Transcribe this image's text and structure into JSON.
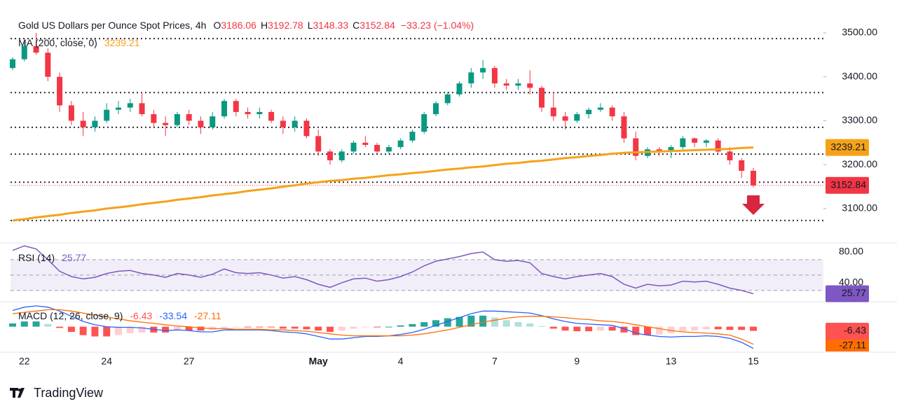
{
  "chart_data": {
    "type": "candlestick",
    "title": "Gold US Dollars per Ounce Spot Prices, 4h",
    "ohlc_labels": [
      "O",
      "H",
      "L",
      "C"
    ],
    "change": "−33.23 (−1.04%)",
    "categories": [
      null,
      "22",
      null,
      null,
      null,
      null,
      null,
      null,
      "24",
      null,
      null,
      null,
      null,
      null,
      null,
      "27",
      null,
      null,
      null,
      null,
      null,
      null,
      null,
      null,
      null,
      null,
      "May",
      null,
      null,
      null,
      null,
      null,
      null,
      "4",
      null,
      null,
      null,
      null,
      null,
      null,
      null,
      "7",
      null,
      null,
      null,
      null,
      null,
      null,
      "9",
      null,
      null,
      null,
      null,
      null,
      null,
      null,
      "13",
      null,
      null,
      null,
      null,
      null,
      null,
      "15"
    ],
    "open": [
      3420,
      3440,
      3470,
      3455,
      3400,
      3335,
      3300,
      3285,
      3300,
      3325,
      3330,
      3340,
      3315,
      3295,
      3290,
      3315,
      3300,
      3285,
      3310,
      3345,
      3320,
      3315,
      3320,
      3300,
      3285,
      3300,
      3265,
      3230,
      3210,
      3230,
      3250,
      3245,
      3230,
      3240,
      3255,
      3275,
      3315,
      3340,
      3360,
      3385,
      3410,
      3420,
      3385,
      3380,
      3385,
      3375,
      3330,
      3310,
      3300,
      3315,
      3325,
      3330,
      3310,
      3260,
      3220,
      3235,
      3230,
      3240,
      3260,
      3250,
      3255,
      3230,
      3210,
      3186.06
    ],
    "high": [
      3445,
      3480,
      3500,
      3465,
      3410,
      3345,
      3320,
      3310,
      3340,
      3345,
      3350,
      3365,
      3325,
      3310,
      3320,
      3325,
      3310,
      3320,
      3350,
      3350,
      3330,
      3330,
      3325,
      3310,
      3310,
      3305,
      3280,
      3235,
      3235,
      3255,
      3265,
      3250,
      3245,
      3260,
      3280,
      3320,
      3345,
      3365,
      3390,
      3420,
      3438,
      3425,
      3395,
      3395,
      3415,
      3380,
      3365,
      3320,
      3320,
      3330,
      3340,
      3335,
      3320,
      3275,
      3240,
      3240,
      3245,
      3265,
      3262,
      3258,
      3260,
      3240,
      3215,
      3192.78
    ],
    "low": [
      3415,
      3435,
      3450,
      3390,
      3320,
      3290,
      3265,
      3275,
      3295,
      3315,
      3320,
      3310,
      3285,
      3265,
      3285,
      3290,
      3270,
      3280,
      3305,
      3310,
      3305,
      3305,
      3295,
      3270,
      3275,
      3260,
      3220,
      3200,
      3205,
      3225,
      3240,
      3225,
      3225,
      3235,
      3250,
      3270,
      3310,
      3335,
      3355,
      3375,
      3395,
      3375,
      3370,
      3370,
      3360,
      3320,
      3300,
      3280,
      3295,
      3305,
      3320,
      3300,
      3250,
      3210,
      3215,
      3220,
      3215,
      3235,
      3240,
      3240,
      3225,
      3200,
      3170,
      3148.33
    ],
    "close": [
      3440,
      3470,
      3455,
      3400,
      3335,
      3300,
      3285,
      3300,
      3325,
      3330,
      3340,
      3315,
      3295,
      3290,
      3315,
      3300,
      3285,
      3310,
      3345,
      3320,
      3315,
      3320,
      3300,
      3285,
      3300,
      3265,
      3230,
      3210,
      3230,
      3250,
      3245,
      3230,
      3240,
      3255,
      3275,
      3315,
      3340,
      3360,
      3385,
      3410,
      3420,
      3385,
      3380,
      3385,
      3375,
      3330,
      3310,
      3300,
      3315,
      3325,
      3330,
      3310,
      3260,
      3220,
      3235,
      3230,
      3240,
      3260,
      3250,
      3255,
      3230,
      3210,
      3186,
      3152.84
    ],
    "up_color": "#089981",
    "down_color": "#f23645",
    "ylim": [
      3025,
      3543
    ],
    "yticks": [
      {
        "value": 3100,
        "label": "3100.00"
      },
      {
        "value": 3200,
        "label": "3200.00"
      },
      {
        "value": 3300,
        "label": "3300.00"
      },
      {
        "value": 3400,
        "label": "3400.00"
      },
      {
        "value": 3500,
        "label": "3500.00"
      }
    ],
    "levels": [
      3487,
      3364,
      3285,
      3224,
      3160,
      3073
    ],
    "ma": {
      "name": "MA (200, close, 0)",
      "color": "#f5a21b",
      "values": [
        3073,
        3076,
        3080,
        3083,
        3086,
        3090,
        3093,
        3096,
        3100,
        3103,
        3106,
        3110,
        3113,
        3116,
        3120,
        3123,
        3126,
        3130,
        3133,
        3136,
        3140,
        3143,
        3146,
        3150,
        3153,
        3157,
        3160,
        3163,
        3165,
        3168,
        3170,
        3173,
        3176,
        3178,
        3181,
        3183,
        3186,
        3189,
        3191,
        3194,
        3196,
        3199,
        3202,
        3204,
        3207,
        3209,
        3212,
        3215,
        3217,
        3220,
        3222,
        3225,
        3227,
        3228,
        3229,
        3230,
        3231,
        3232,
        3233,
        3234,
        3235,
        3236,
        3238,
        3239.21
      ]
    },
    "rsi": {
      "name": "RSI (14)",
      "color": "#7e57c2",
      "ylim": [
        18,
        89
      ],
      "yticks": [
        {
          "value": 80,
          "label": "80.00"
        },
        {
          "value": 40,
          "label": "40.00"
        }
      ],
      "bands": [
        70,
        50,
        30
      ],
      "values": [
        82,
        88,
        84,
        70,
        55,
        48,
        45,
        47,
        52,
        55,
        56,
        52,
        50,
        47,
        52,
        50,
        47,
        51,
        58,
        53,
        52,
        53,
        50,
        46,
        48,
        44,
        38,
        34,
        40,
        45,
        46,
        42,
        44,
        48,
        54,
        62,
        68,
        71,
        74,
        78,
        80,
        70,
        68,
        69,
        66,
        52,
        48,
        45,
        48,
        50,
        52,
        48,
        38,
        33,
        38,
        36,
        37,
        42,
        41,
        42,
        38,
        33,
        30,
        25.77
      ]
    },
    "macd": {
      "name": "MACD (12, 26, close, 9)",
      "ylim": [
        -36,
        34
      ],
      "histogram": {
        "colors": [
          "#26a69a",
          "#b2dfdb",
          "#ff5252",
          "#ffcdd2"
        ],
        "values": [
          5,
          8,
          8,
          4,
          -2,
          -8,
          -13,
          -15,
          -15,
          -13,
          -10,
          -9,
          -9,
          -9,
          -6,
          -6,
          -6,
          -5,
          -2,
          -1,
          -1,
          -1,
          -1,
          -3,
          -3,
          -4,
          -6,
          -8,
          -6,
          -3,
          -1,
          -1,
          0,
          2,
          4,
          7,
          10,
          13,
          15,
          17,
          17,
          14,
          10,
          7,
          5,
          1,
          -3,
          -6,
          -7,
          -7,
          -6,
          -6,
          -9,
          -13,
          -13,
          -12,
          -10,
          -7,
          -6,
          -4,
          -4,
          -5,
          -5,
          -6.43
        ]
      },
      "macd": {
        "color": "#2962ff",
        "values": [
          25,
          30,
          32,
          30,
          24,
          16,
          8,
          3,
          0,
          -1,
          -1,
          -2,
          -4,
          -6,
          -5,
          -6,
          -8,
          -8,
          -5,
          -5,
          -5,
          -5,
          -6,
          -8,
          -9,
          -11,
          -15,
          -19,
          -19,
          -17,
          -15,
          -15,
          -14,
          -12,
          -9,
          -4,
          2,
          8,
          14,
          20,
          24,
          24,
          23,
          22,
          21,
          17,
          12,
          8,
          5,
          4,
          3,
          2,
          -3,
          -10,
          -13,
          -15,
          -16,
          -15,
          -15,
          -14,
          -15,
          -18,
          -24,
          -33.54
        ]
      },
      "signal": {
        "color": "#ff6d00",
        "values": [
          20,
          22,
          24,
          26,
          26,
          24,
          21,
          18,
          15,
          12,
          9,
          7,
          5,
          3,
          1,
          0,
          -2,
          -3,
          -3,
          -4,
          -4,
          -4,
          -5,
          -5,
          -6,
          -7,
          -9,
          -11,
          -13,
          -14,
          -14,
          -14,
          -14,
          -14,
          -13,
          -11,
          -8,
          -5,
          -1,
          3,
          7,
          10,
          13,
          15,
          16,
          16,
          15,
          14,
          12,
          11,
          9,
          8,
          6,
          3,
          0,
          -3,
          -6,
          -8,
          -9,
          -10,
          -11,
          -13,
          -19,
          -27.11
        ]
      }
    }
  },
  "footer": {
    "brand": "TradingView"
  }
}
